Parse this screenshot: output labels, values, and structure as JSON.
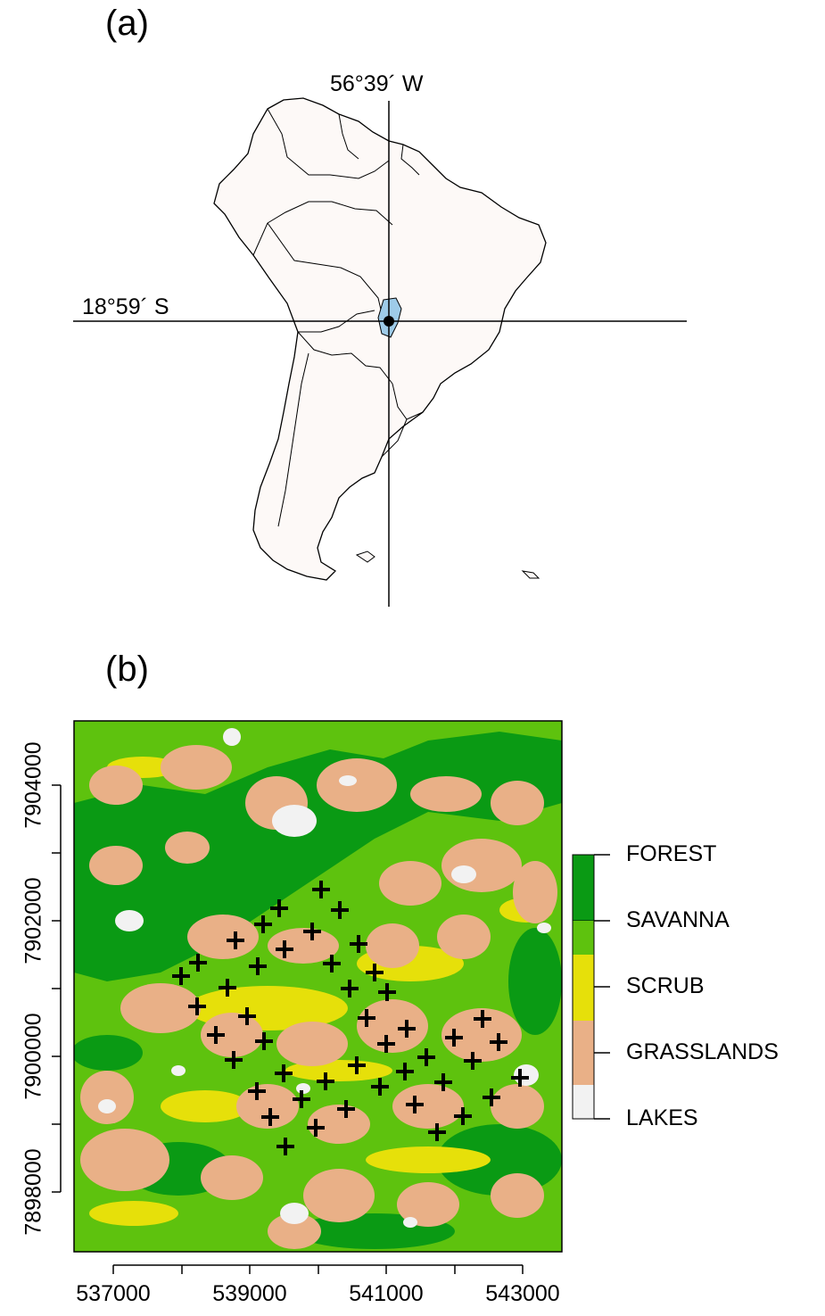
{
  "panel_a": {
    "label": "(a)",
    "longitude_label": "56°39´ W",
    "latitude_label": "18°59´ S",
    "colors": {
      "land": "#fdf9f7",
      "study_area": "#9ecbe8",
      "outline": "#000000"
    }
  },
  "panel_b": {
    "label": "(b)",
    "legend": [
      {
        "label": "FOREST",
        "color": "#0a9a14"
      },
      {
        "label": "SAVANNA",
        "color": "#5ec20e"
      },
      {
        "label": "SCRUB",
        "color": "#e6e00a"
      },
      {
        "label": "GRASSLANDS",
        "color": "#e9b087"
      },
      {
        "label": "LAKES",
        "color": "#f2f2f2"
      }
    ],
    "x_ticks": [
      "537000",
      "539000",
      "541000",
      "543000"
    ],
    "y_ticks": [
      "7898000",
      "7900000",
      "7902000",
      "7904000"
    ],
    "sample_marker": "cross"
  }
}
